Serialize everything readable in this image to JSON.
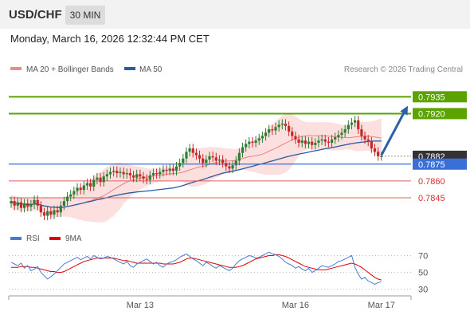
{
  "header": {
    "symbol": "USD/CHF",
    "timeframe": "30 MIN",
    "datetime": "Monday, March 16, 2026 12:32:44 PM CET"
  },
  "colors": {
    "candle_up": "#2e7d32",
    "candle_down": "#c62828",
    "ma50": "#2c5aa0",
    "ma20": "#ef7f7f",
    "band_fill": "#fbd9d9",
    "resistance": "#5aa300",
    "current": "#3a6fd8",
    "support": "#e06060",
    "arrow": "#2b5fa8",
    "rsi": "#4a7bd4",
    "rsi_ma": "#e00000"
  },
  "chart_data": [
    {
      "type": "candlestick",
      "legend": [
        {
          "name": "MA 20 + Bollinger Bands",
          "color": "#ef8a8a"
        },
        {
          "name": "MA 50",
          "color": "#2c5aa0"
        }
      ],
      "credit": "Research © 2026 Trading Central",
      "ylim": [
        0.7818,
        0.7953
      ],
      "price_levels": [
        {
          "value": 0.7935,
          "label": "0.7935",
          "kind": "resistance"
        },
        {
          "value": 0.792,
          "label": "0.7920",
          "kind": "resistance"
        },
        {
          "value": 0.7882,
          "label": "0.7882",
          "kind": "last"
        },
        {
          "value": 0.7875,
          "label": "0.7875",
          "kind": "pivot"
        },
        {
          "value": 0.786,
          "label": "0.7860",
          "kind": "support"
        },
        {
          "value": 0.7845,
          "label": "0.7845",
          "kind": "support"
        }
      ],
      "x_ticks": [
        {
          "label": "Mar 13",
          "index": 39
        },
        {
          "label": "Mar 16",
          "index": 86
        },
        {
          "label": "Mar 17",
          "index": 112
        }
      ],
      "closes": [
        0.7842,
        0.7838,
        0.7841,
        0.7836,
        0.784,
        0.7837,
        0.7839,
        0.7843,
        0.7838,
        0.7832,
        0.7829,
        0.7833,
        0.783,
        0.7834,
        0.7832,
        0.7838,
        0.7842,
        0.7846,
        0.7848,
        0.7851,
        0.7854,
        0.7852,
        0.7856,
        0.7858,
        0.7855,
        0.7861,
        0.7863,
        0.7859,
        0.7864,
        0.7866,
        0.7868,
        0.7869,
        0.7867,
        0.7868,
        0.7866,
        0.7867,
        0.7865,
        0.7863,
        0.7866,
        0.7864,
        0.7862,
        0.7861,
        0.7865,
        0.7867,
        0.7866,
        0.7868,
        0.787,
        0.7869,
        0.7871,
        0.7869,
        0.7873,
        0.7876,
        0.788,
        0.7886,
        0.7889,
        0.7885,
        0.7883,
        0.788,
        0.7876,
        0.7879,
        0.7882,
        0.7881,
        0.7878,
        0.7879,
        0.7876,
        0.7873,
        0.7871,
        0.7874,
        0.7878,
        0.7885,
        0.789,
        0.7893,
        0.7895,
        0.7894,
        0.7896,
        0.7898,
        0.79,
        0.7903,
        0.7906,
        0.7905,
        0.7908,
        0.791,
        0.7911,
        0.7909,
        0.7904,
        0.79,
        0.7897,
        0.7894,
        0.7896,
        0.7893,
        0.7895,
        0.7892,
        0.7894,
        0.7896,
        0.7897,
        0.7895,
        0.7894,
        0.7897,
        0.7899,
        0.7901,
        0.7903,
        0.7906,
        0.791,
        0.7912,
        0.7914,
        0.7906,
        0.79,
        0.7897,
        0.7895,
        0.7889,
        0.7886,
        0.7882,
        0.7882
      ],
      "arrow": {
        "from_index": 112,
        "from_value": 0.7883,
        "to_index": 120,
        "to_value": 0.7927
      }
    },
    {
      "type": "line",
      "legend": [
        {
          "name": "RSI",
          "color": "#4a7bd4"
        },
        {
          "name": "9MA",
          "color": "#e00000"
        }
      ],
      "ylim": [
        25,
        78
      ],
      "y_ticks": [
        70,
        50,
        30
      ],
      "rsi": [
        62,
        60,
        58,
        61,
        55,
        58,
        52,
        54,
        57,
        50,
        46,
        42,
        45,
        48,
        52,
        56,
        60,
        62,
        64,
        66,
        68,
        65,
        67,
        69,
        66,
        70,
        68,
        66,
        67,
        69,
        68,
        66,
        64,
        62,
        60,
        63,
        58,
        56,
        60,
        62,
        64,
        66,
        63,
        60,
        62,
        58,
        56,
        60,
        62,
        63,
        65,
        68,
        70,
        72,
        69,
        66,
        64,
        61,
        58,
        62,
        60,
        57,
        55,
        58,
        56,
        54,
        52,
        55,
        60,
        64,
        66,
        68,
        70,
        69,
        67,
        68,
        70,
        72,
        74,
        72,
        71,
        69,
        66,
        62,
        60,
        58,
        55,
        57,
        54,
        52,
        55,
        50,
        52,
        55,
        58,
        57,
        56,
        58,
        60,
        63,
        64,
        66,
        68,
        70,
        56,
        48,
        42,
        44,
        40,
        38,
        36,
        38,
        39
      ],
      "rsi_ma": [
        56,
        56,
        56,
        57,
        57,
        57,
        56,
        56,
        55,
        54,
        53,
        52,
        51,
        51,
        50,
        50,
        51,
        53,
        55,
        57,
        59,
        61,
        63,
        64,
        65,
        66,
        67,
        67,
        67,
        67,
        67,
        67,
        66,
        65,
        64,
        64,
        63,
        62,
        61,
        61,
        61,
        61,
        61,
        61,
        61,
        61,
        60,
        60,
        60,
        60,
        61,
        62,
        64,
        66,
        67,
        67,
        66,
        65,
        64,
        63,
        62,
        61,
        60,
        59,
        58,
        57,
        56,
        56,
        56,
        57,
        58,
        60,
        62,
        64,
        66,
        67,
        68,
        69,
        70,
        70,
        71,
        71,
        70,
        69,
        67,
        65,
        63,
        61,
        59,
        57,
        56,
        55,
        54,
        53,
        53,
        53,
        54,
        55,
        56,
        57,
        58,
        59,
        60,
        61,
        60,
        58,
        56,
        53,
        50,
        47,
        44,
        42,
        41
      ]
    }
  ]
}
